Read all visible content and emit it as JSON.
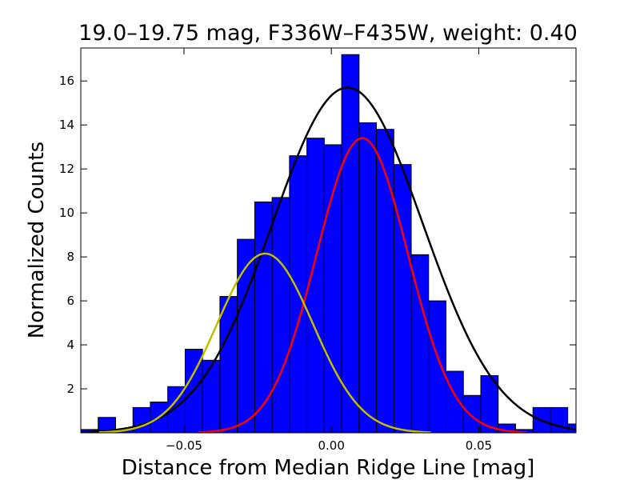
{
  "chart_data": {
    "type": "bar",
    "title": "19.0–19.75 mag, F336W–F435W, weight: 0.40",
    "xlabel": "Distance from Median Ridge Line [mag]",
    "ylabel": "Normalized Counts",
    "xlim": [
      -0.085,
      0.083
    ],
    "ylim": [
      0,
      17.5
    ],
    "x_ticks": [
      -0.05,
      0.0,
      0.05
    ],
    "x_tick_labels": [
      "−0.05",
      "0.00",
      "0.05"
    ],
    "y_ticks": [
      2,
      4,
      6,
      8,
      10,
      12,
      14,
      16
    ],
    "y_tick_labels": [
      "2",
      "4",
      "6",
      "8",
      "10",
      "12",
      "14",
      "16"
    ],
    "grid": false,
    "bin_width": 0.0059,
    "bin_starts": [
      -0.085,
      -0.0791,
      -0.0732,
      -0.0673,
      -0.0614,
      -0.0555,
      -0.0496,
      -0.0437,
      -0.0378,
      -0.0319,
      -0.026,
      -0.0201,
      -0.0142,
      -0.0083,
      -0.0024,
      0.0035,
      0.0094,
      0.0153,
      0.0212,
      0.0271,
      0.033,
      0.0389,
      0.0448,
      0.0507,
      0.0566,
      0.0625,
      0.0684,
      0.0743,
      0.0802
    ],
    "values": [
      0.15,
      0.7,
      0.15,
      1.15,
      1.4,
      2.1,
      3.8,
      3.3,
      6.2,
      8.8,
      10.5,
      10.7,
      12.6,
      13.4,
      13.1,
      17.2,
      14.1,
      13.8,
      12.2,
      8.1,
      6.0,
      2.8,
      1.7,
      2.6,
      0.4,
      0.15,
      1.15,
      1.15,
      0.4
    ],
    "bar_color": "#0000ff",
    "curves": [
      {
        "color": "#000000",
        "amplitude": 15.7,
        "mean": 0.0055,
        "sigma": 0.0255
      },
      {
        "color": "#ff0000",
        "amplitude": 13.4,
        "mean": 0.0105,
        "sigma": 0.0155
      },
      {
        "color": "#bfbf00",
        "amplitude": 8.15,
        "mean": -0.0225,
        "sigma": 0.0163
      }
    ]
  }
}
